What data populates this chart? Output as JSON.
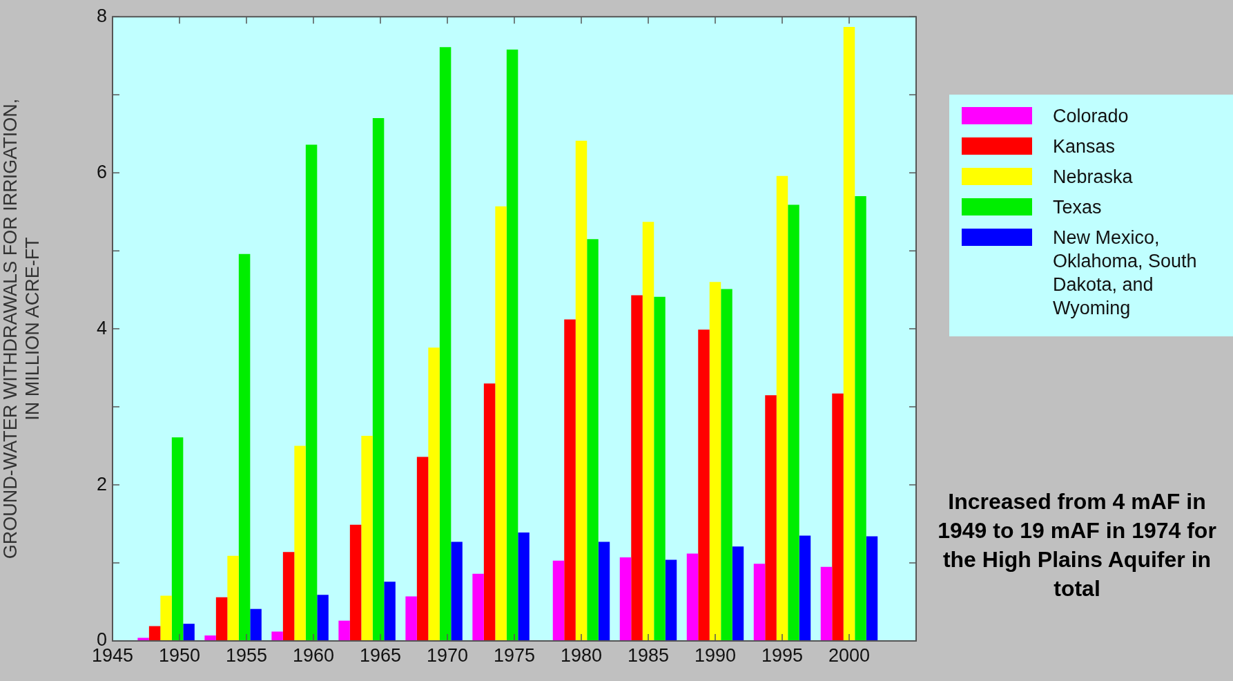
{
  "chart_data": {
    "type": "bar",
    "ylabel": "GROUND-WATER WITHDRAWALS FOR IRRIGATION, IN MILLION ACRE-FT",
    "x": [
      1949,
      1954,
      1959,
      1964,
      1969,
      1974,
      1980,
      1985,
      1990,
      1995,
      2000
    ],
    "series": [
      {
        "name": "Colorado",
        "color": "#ff00ff",
        "values": [
          0.04,
          0.07,
          0.12,
          0.26,
          0.57,
          0.86,
          1.03,
          1.07,
          1.12,
          0.99,
          0.95
        ]
      },
      {
        "name": "Kansas",
        "color": "#ff0000",
        "values": [
          0.19,
          0.56,
          1.14,
          1.49,
          2.36,
          3.3,
          4.12,
          4.43,
          3.99,
          3.15,
          3.17
        ]
      },
      {
        "name": "Nebraska",
        "color": "#ffff00",
        "values": [
          0.58,
          1.09,
          2.5,
          2.63,
          3.76,
          5.57,
          6.41,
          5.37,
          4.6,
          5.96,
          7.87
        ]
      },
      {
        "name": "Texas",
        "color": "#00ee00",
        "values": [
          2.61,
          4.96,
          6.36,
          6.7,
          7.61,
          7.58,
          5.15,
          4.41,
          4.51,
          5.59,
          5.7
        ]
      },
      {
        "name": "New Mexico, Oklahoma, South Dakota, and Wyoming",
        "color": "#0000ff",
        "values": [
          0.22,
          0.41,
          0.59,
          0.76,
          1.27,
          1.39,
          1.27,
          1.04,
          1.21,
          1.35,
          1.34
        ]
      }
    ],
    "xlim": [
      1945,
      2005
    ],
    "xticks": [
      1945,
      1950,
      1955,
      1960,
      1965,
      1970,
      1975,
      1980,
      1985,
      1990,
      1995,
      2000
    ],
    "ylim": [
      0,
      8
    ],
    "yticks": [
      0,
      {
        "value": 1,
        "label": null
      },
      2,
      {
        "value": 3,
        "label": null
      },
      4,
      {
        "value": 5,
        "label": null
      },
      6,
      {
        "value": 7,
        "label": null
      },
      8
    ],
    "grid": false,
    "legend": "right",
    "annotations": [
      "Increased from 4 mAF in 1949 to 19 mAF in 1974 for the High Plains Aquifer in total"
    ]
  }
}
